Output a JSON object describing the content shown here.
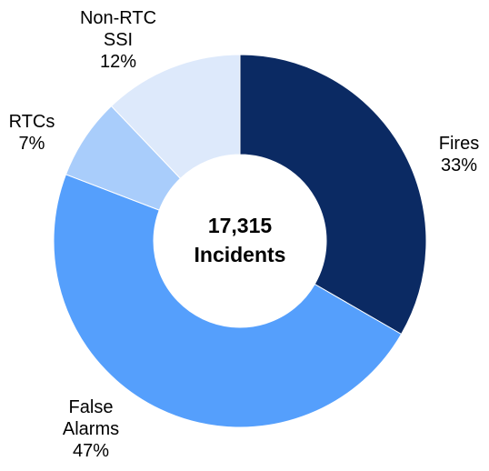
{
  "chart_data": {
    "type": "donut",
    "categories": [
      "Fires",
      "False Alarms",
      "RTCs",
      "Non-RTC SSI"
    ],
    "values": [
      33,
      47,
      7,
      12
    ],
    "value_labels": [
      "33%",
      "47%",
      "7%",
      "12%"
    ],
    "colors": [
      "#0b2a63",
      "#559ffc",
      "#a9cdfb",
      "#dde9fb"
    ],
    "center_label": [
      "17,315",
      "Incidents"
    ]
  }
}
